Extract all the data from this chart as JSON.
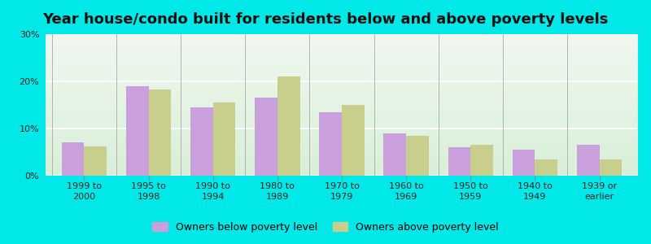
{
  "title": "Year house/condo built for residents below and above poverty levels",
  "categories": [
    "1999 to\n2000",
    "1995 to\n1998",
    "1990 to\n1994",
    "1980 to\n1989",
    "1970 to\n1979",
    "1960 to\n1969",
    "1950 to\n1959",
    "1940 to\n1949",
    "1939 or\nearlier"
  ],
  "below_poverty": [
    7.0,
    19.0,
    14.5,
    16.5,
    13.5,
    9.0,
    6.0,
    5.5,
    6.5
  ],
  "above_poverty": [
    6.2,
    18.2,
    15.5,
    21.0,
    15.0,
    8.5,
    6.5,
    3.5,
    3.5
  ],
  "below_color": "#c9a0dc",
  "above_color": "#c8cf8c",
  "outer_bg": "#00e8e8",
  "ylim": [
    0,
    30
  ],
  "yticks": [
    0,
    10,
    20,
    30
  ],
  "ytick_labels": [
    "0%",
    "10%",
    "20%",
    "30%"
  ],
  "title_fontsize": 13,
  "tick_fontsize": 8,
  "legend_below_label": "Owners below poverty level",
  "legend_above_label": "Owners above poverty level",
  "bar_width": 0.35,
  "bg_top": "#f0f8f0",
  "bg_bottom": "#d8efd8"
}
